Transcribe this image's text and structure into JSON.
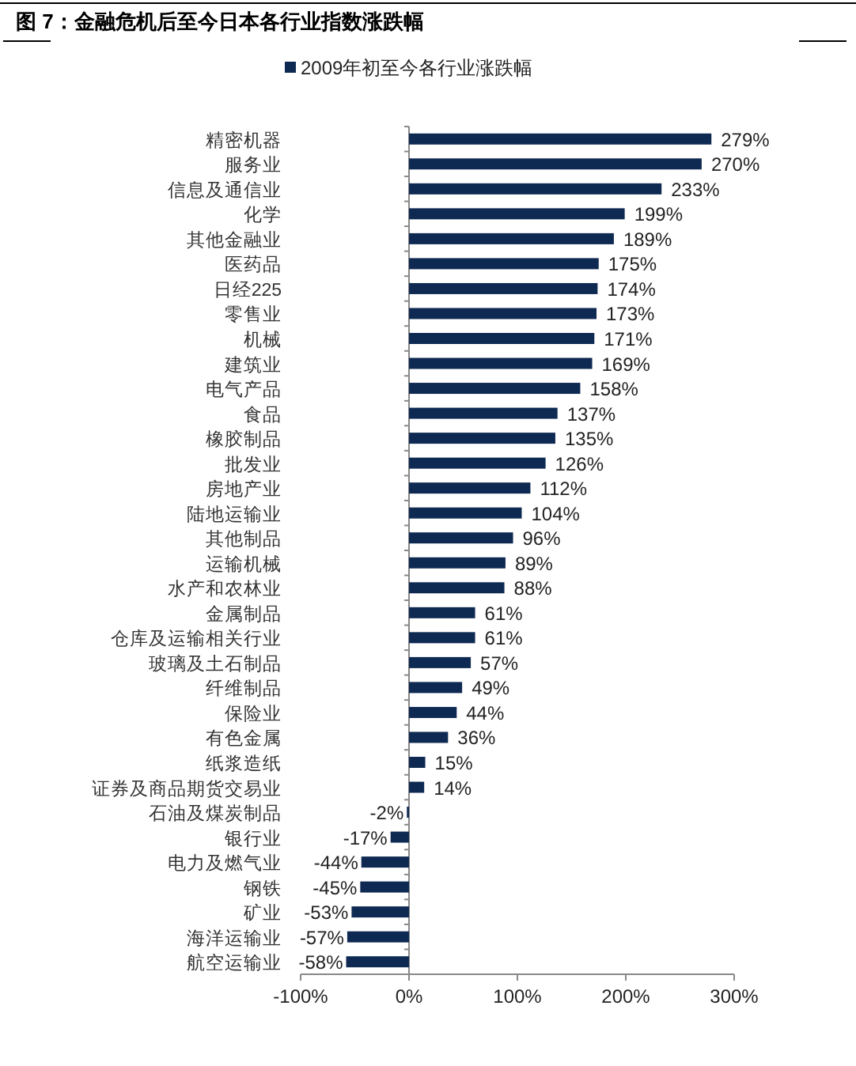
{
  "chart_data": {
    "type": "bar",
    "orientation": "horizontal",
    "title": "图 7：金融危机后至今日本各行业指数涨跌幅",
    "categories": [
      "精密机器",
      "服务业",
      "信息及通信业",
      "化学",
      "其他金融业",
      "医药品",
      "日经225",
      "零售业",
      "机械",
      "建筑业",
      "电气产品",
      "食品",
      "橡胶制品",
      "批发业",
      "房地产业",
      "陆地运输业",
      "其他制品",
      "运输机械",
      "水产和农林业",
      "金属制品",
      "仓库及运输相关行业",
      "玻璃及土石制品",
      "纤维制品",
      "保险业",
      "有色金属",
      "纸浆造纸",
      "证券及商品期货交易业",
      "石油及煤炭制品",
      "银行业",
      "电力及燃气业",
      "钢铁",
      "矿业",
      "海洋运输业",
      "航空运输业"
    ],
    "series": [
      {
        "name": "2009年初至今各行业涨跌幅",
        "color": "#0f2a52",
        "values": [
          279,
          270,
          233,
          199,
          189,
          175,
          174,
          173,
          171,
          169,
          158,
          137,
          135,
          126,
          112,
          104,
          96,
          89,
          88,
          61,
          61,
          57,
          49,
          44,
          36,
          15,
          14,
          -2,
          -17,
          -44,
          -45,
          -53,
          -57,
          -58
        ],
        "value_labels": [
          "279%",
          "270%",
          "233%",
          "199%",
          "189%",
          "175%",
          "174%",
          "173%",
          "171%",
          "169%",
          "158%",
          "137%",
          "135%",
          "126%",
          "112%",
          "104%",
          "96%",
          "89%",
          "88%",
          "61%",
          "61%",
          "57%",
          "49%",
          "44%",
          "36%",
          "15%",
          "14%",
          "-2%",
          "-17%",
          "-44%",
          "-45%",
          "-53%",
          "-57%",
          "-58%"
        ]
      }
    ],
    "xlim": [
      -100,
      300
    ],
    "xticks": [
      {
        "value": -100,
        "label": "-100%"
      },
      {
        "value": 0,
        "label": "0%"
      },
      {
        "value": 100,
        "label": "100%"
      },
      {
        "value": 200,
        "label": "200%"
      },
      {
        "value": 300,
        "label": "300%"
      }
    ],
    "legend": "top"
  }
}
